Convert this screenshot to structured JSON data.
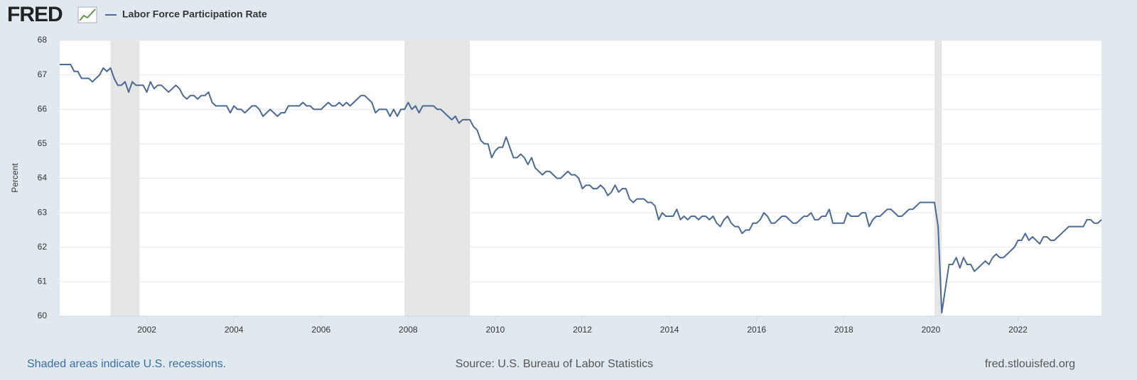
{
  "logo": "FRED",
  "chart_data": {
    "type": "line",
    "ylabel": "Percent",
    "note": "Shaded areas indicate U.S. recessions.",
    "source": "Source: U.S. Bureau of Labor Statistics",
    "site": "fred.stlouisfed.org",
    "recessions": [
      [
        "2001-03",
        "2001-11"
      ],
      [
        "2007-12",
        "2009-06"
      ],
      [
        "2020-02",
        "2020-04"
      ]
    ],
    "x": [
      "2000-01",
      "2000-02",
      "2000-03",
      "2000-04",
      "2000-05",
      "2000-06",
      "2000-07",
      "2000-08",
      "2000-09",
      "2000-10",
      "2000-11",
      "2000-12",
      "2001-01",
      "2001-02",
      "2001-03",
      "2001-04",
      "2001-05",
      "2001-06",
      "2001-07",
      "2001-08",
      "2001-09",
      "2001-10",
      "2001-11",
      "2001-12",
      "2002-01",
      "2002-02",
      "2002-03",
      "2002-04",
      "2002-05",
      "2002-06",
      "2002-07",
      "2002-08",
      "2002-09",
      "2002-10",
      "2002-11",
      "2002-12",
      "2003-01",
      "2003-02",
      "2003-03",
      "2003-04",
      "2003-05",
      "2003-06",
      "2003-07",
      "2003-08",
      "2003-09",
      "2003-10",
      "2003-11",
      "2003-12",
      "2004-01",
      "2004-02",
      "2004-03",
      "2004-04",
      "2004-05",
      "2004-06",
      "2004-07",
      "2004-08",
      "2004-09",
      "2004-10",
      "2004-11",
      "2004-12",
      "2005-01",
      "2005-02",
      "2005-03",
      "2005-04",
      "2005-05",
      "2005-06",
      "2005-07",
      "2005-08",
      "2005-09",
      "2005-10",
      "2005-11",
      "2005-12",
      "2006-01",
      "2006-02",
      "2006-03",
      "2006-04",
      "2006-05",
      "2006-06",
      "2006-07",
      "2006-08",
      "2006-09",
      "2006-10",
      "2006-11",
      "2006-12",
      "2007-01",
      "2007-02",
      "2007-03",
      "2007-04",
      "2007-05",
      "2007-06",
      "2007-07",
      "2007-08",
      "2007-09",
      "2007-10",
      "2007-11",
      "2007-12",
      "2008-01",
      "2008-02",
      "2008-03",
      "2008-04",
      "2008-05",
      "2008-06",
      "2008-07",
      "2008-08",
      "2008-09",
      "2008-10",
      "2008-11",
      "2008-12",
      "2009-01",
      "2009-02",
      "2009-03",
      "2009-04",
      "2009-05",
      "2009-06",
      "2009-07",
      "2009-08",
      "2009-09",
      "2009-10",
      "2009-11",
      "2009-12",
      "2010-01",
      "2010-02",
      "2010-03",
      "2010-04",
      "2010-05",
      "2010-06",
      "2010-07",
      "2010-08",
      "2010-09",
      "2010-10",
      "2010-11",
      "2010-12",
      "2011-01",
      "2011-02",
      "2011-03",
      "2011-04",
      "2011-05",
      "2011-06",
      "2011-07",
      "2011-08",
      "2011-09",
      "2011-10",
      "2011-11",
      "2011-12",
      "2012-01",
      "2012-02",
      "2012-03",
      "2012-04",
      "2012-05",
      "2012-06",
      "2012-07",
      "2012-08",
      "2012-09",
      "2012-10",
      "2012-11",
      "2012-12",
      "2013-01",
      "2013-02",
      "2013-03",
      "2013-04",
      "2013-05",
      "2013-06",
      "2013-07",
      "2013-08",
      "2013-09",
      "2013-10",
      "2013-11",
      "2013-12",
      "2014-01",
      "2014-02",
      "2014-03",
      "2014-04",
      "2014-05",
      "2014-06",
      "2014-07",
      "2014-08",
      "2014-09",
      "2014-10",
      "2014-11",
      "2014-12",
      "2015-01",
      "2015-02",
      "2015-03",
      "2015-04",
      "2015-05",
      "2015-06",
      "2015-07",
      "2015-08",
      "2015-09",
      "2015-10",
      "2015-11",
      "2015-12",
      "2016-01",
      "2016-02",
      "2016-03",
      "2016-04",
      "2016-05",
      "2016-06",
      "2016-07",
      "2016-08",
      "2016-09",
      "2016-10",
      "2016-11",
      "2016-12",
      "2017-01",
      "2017-02",
      "2017-03",
      "2017-04",
      "2017-05",
      "2017-06",
      "2017-07",
      "2017-08",
      "2017-09",
      "2017-10",
      "2017-11",
      "2017-12",
      "2018-01",
      "2018-02",
      "2018-03",
      "2018-04",
      "2018-05",
      "2018-06",
      "2018-07",
      "2018-08",
      "2018-09",
      "2018-10",
      "2018-11",
      "2018-12",
      "2019-01",
      "2019-02",
      "2019-03",
      "2019-04",
      "2019-05",
      "2019-06",
      "2019-07",
      "2019-08",
      "2019-09",
      "2019-10",
      "2019-11",
      "2019-12",
      "2020-01",
      "2020-02",
      "2020-03",
      "2020-04",
      "2020-05",
      "2020-06",
      "2020-07",
      "2020-08",
      "2020-09",
      "2020-10",
      "2020-11",
      "2020-12",
      "2021-01",
      "2021-02",
      "2021-03",
      "2021-04",
      "2021-05",
      "2021-06",
      "2021-07",
      "2021-08",
      "2021-09",
      "2021-10",
      "2021-11",
      "2021-12",
      "2022-01",
      "2022-02",
      "2022-03",
      "2022-04",
      "2022-05",
      "2022-06",
      "2022-07",
      "2022-08",
      "2022-09",
      "2022-10",
      "2022-11",
      "2022-12",
      "2023-01",
      "2023-02",
      "2023-03",
      "2023-04",
      "2023-05",
      "2023-06",
      "2023-07",
      "2023-08",
      "2023-09",
      "2023-10",
      "2023-11",
      "2023-12"
    ],
    "series": [
      {
        "name": "Labor Force Participation Rate",
        "color": "#4b6a94",
        "values": [
          67.3,
          67.3,
          67.3,
          67.3,
          67.1,
          67.1,
          66.9,
          66.9,
          66.9,
          66.8,
          66.9,
          67.0,
          67.2,
          67.1,
          67.2,
          66.9,
          66.7,
          66.7,
          66.8,
          66.5,
          66.8,
          66.7,
          66.7,
          66.7,
          66.5,
          66.8,
          66.6,
          66.7,
          66.7,
          66.6,
          66.5,
          66.6,
          66.7,
          66.6,
          66.4,
          66.3,
          66.4,
          66.4,
          66.3,
          66.4,
          66.4,
          66.5,
          66.2,
          66.1,
          66.1,
          66.1,
          66.1,
          65.9,
          66.1,
          66.0,
          66.0,
          65.9,
          66.0,
          66.1,
          66.1,
          66.0,
          65.8,
          65.9,
          66.0,
          65.9,
          65.8,
          65.9,
          65.9,
          66.1,
          66.1,
          66.1,
          66.1,
          66.2,
          66.1,
          66.1,
          66.0,
          66.0,
          66.0,
          66.1,
          66.2,
          66.1,
          66.1,
          66.2,
          66.1,
          66.2,
          66.1,
          66.2,
          66.3,
          66.4,
          66.4,
          66.3,
          66.2,
          65.9,
          66.0,
          66.0,
          66.0,
          65.8,
          66.0,
          65.8,
          66.0,
          66.0,
          66.2,
          66.0,
          66.1,
          65.9,
          66.1,
          66.1,
          66.1,
          66.1,
          66.0,
          66.0,
          65.9,
          65.8,
          65.7,
          65.8,
          65.6,
          65.7,
          65.7,
          65.7,
          65.5,
          65.4,
          65.1,
          65.0,
          65.0,
          64.6,
          64.8,
          64.9,
          64.9,
          65.2,
          64.9,
          64.6,
          64.6,
          64.7,
          64.6,
          64.4,
          64.6,
          64.3,
          64.2,
          64.1,
          64.2,
          64.2,
          64.1,
          64.0,
          64.0,
          64.1,
          64.2,
          64.1,
          64.1,
          64.0,
          63.7,
          63.8,
          63.8,
          63.7,
          63.7,
          63.8,
          63.7,
          63.5,
          63.6,
          63.8,
          63.6,
          63.7,
          63.7,
          63.4,
          63.3,
          63.4,
          63.4,
          63.4,
          63.3,
          63.3,
          63.2,
          62.8,
          63.0,
          62.9,
          62.9,
          62.9,
          63.1,
          62.8,
          62.9,
          62.8,
          62.9,
          62.9,
          62.8,
          62.9,
          62.9,
          62.8,
          62.9,
          62.7,
          62.6,
          62.8,
          62.9,
          62.7,
          62.6,
          62.6,
          62.4,
          62.5,
          62.5,
          62.7,
          62.7,
          62.8,
          63.0,
          62.9,
          62.7,
          62.7,
          62.8,
          62.9,
          62.9,
          62.8,
          62.7,
          62.7,
          62.8,
          62.9,
          62.9,
          63.0,
          62.8,
          62.8,
          62.9,
          62.9,
          63.1,
          62.7,
          62.7,
          62.7,
          62.7,
          63.0,
          62.9,
          62.9,
          62.9,
          63.0,
          63.0,
          62.6,
          62.8,
          62.9,
          62.9,
          63.0,
          63.1,
          63.1,
          63.0,
          62.9,
          62.9,
          63.0,
          63.1,
          63.1,
          63.2,
          63.3,
          63.3,
          63.3,
          63.3,
          63.3,
          62.6,
          60.1,
          60.8,
          61.5,
          61.5,
          61.7,
          61.4,
          61.7,
          61.5,
          61.5,
          61.3,
          61.4,
          61.5,
          61.6,
          61.5,
          61.7,
          61.8,
          61.7,
          61.7,
          61.8,
          61.9,
          62.0,
          62.2,
          62.2,
          62.4,
          62.2,
          62.3,
          62.2,
          62.1,
          62.3,
          62.3,
          62.2,
          62.2,
          62.3,
          62.4,
          62.5,
          62.6,
          62.6,
          62.6,
          62.6,
          62.6,
          62.8,
          62.8,
          62.7,
          62.7,
          62.8
        ]
      }
    ],
    "xlim": [
      "2000-01",
      "2023-12"
    ],
    "xticks": [
      {
        "value": "2002-01",
        "label": "2002"
      },
      {
        "value": "2004-01",
        "label": "2004"
      },
      {
        "value": "2006-01",
        "label": "2006"
      },
      {
        "value": "2008-01",
        "label": "2008"
      },
      {
        "value": "2010-01",
        "label": "2010"
      },
      {
        "value": "2012-01",
        "label": "2012"
      },
      {
        "value": "2014-01",
        "label": "2014"
      },
      {
        "value": "2016-01",
        "label": "2016"
      },
      {
        "value": "2018-01",
        "label": "2018"
      },
      {
        "value": "2020-01",
        "label": "2020"
      },
      {
        "value": "2022-01",
        "label": "2022"
      }
    ],
    "ylim": [
      60,
      68
    ],
    "yticks": [
      60,
      61,
      62,
      63,
      64,
      65,
      66,
      67,
      68
    ],
    "grid": true
  }
}
